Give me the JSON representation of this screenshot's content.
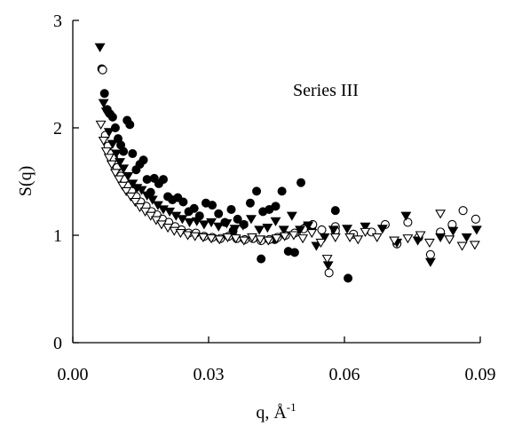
{
  "chart_data": {
    "type": "scatter",
    "title": "",
    "annotation": "Series III",
    "xlabel": "q, Å",
    "xlabel_sup": "-1",
    "ylabel": "S(q)",
    "xlim": [
      0.0,
      0.09
    ],
    "ylim": [
      0,
      3
    ],
    "x_ticks": [
      "0.00",
      "0.03",
      "0.06",
      "0.09"
    ],
    "y_ticks": [
      "0",
      "1",
      "2",
      "3"
    ],
    "grid": false,
    "series": [
      {
        "marker": "filled-circle",
        "color": "#000000",
        "points": [
          [
            0.0064,
            2.55
          ],
          [
            0.007,
            2.32
          ],
          [
            0.0076,
            2.17
          ],
          [
            0.0082,
            2.13
          ],
          [
            0.0088,
            2.1
          ],
          [
            0.0094,
            2.0
          ],
          [
            0.01,
            1.9
          ],
          [
            0.0106,
            1.84
          ],
          [
            0.0112,
            1.78
          ],
          [
            0.012,
            2.07
          ],
          [
            0.0126,
            2.03
          ],
          [
            0.0132,
            1.76
          ],
          [
            0.014,
            1.61
          ],
          [
            0.0148,
            1.66
          ],
          [
            0.0156,
            1.7
          ],
          [
            0.0164,
            1.52
          ],
          [
            0.0172,
            1.4
          ],
          [
            0.018,
            1.53
          ],
          [
            0.019,
            1.48
          ],
          [
            0.02,
            1.52
          ],
          [
            0.021,
            1.36
          ],
          [
            0.022,
            1.33
          ],
          [
            0.0232,
            1.35
          ],
          [
            0.0244,
            1.31
          ],
          [
            0.0256,
            1.22
          ],
          [
            0.0268,
            1.25
          ],
          [
            0.028,
            1.18
          ],
          [
            0.0294,
            1.3
          ],
          [
            0.0308,
            1.28
          ],
          [
            0.0322,
            1.2
          ],
          [
            0.0336,
            1.12
          ],
          [
            0.035,
            1.24
          ],
          [
            0.0364,
            1.15
          ],
          [
            0.0378,
            1.1
          ],
          [
            0.0392,
            1.3
          ],
          [
            0.0406,
            1.41
          ],
          [
            0.042,
            1.22
          ],
          [
            0.0434,
            1.24
          ],
          [
            0.0448,
            1.27
          ],
          [
            0.0462,
            1.41
          ],
          [
            0.0476,
            0.85
          ],
          [
            0.049,
            0.84
          ],
          [
            0.0504,
            1.49
          ],
          [
            0.0516,
            1.08
          ],
          [
            0.0528,
            1.07
          ],
          [
            0.0416,
            0.78
          ],
          [
            0.0446,
            0.96
          ],
          [
            0.058,
            1.23
          ],
          [
            0.0608,
            0.6
          ],
          [
            0.0354,
            1.04
          ]
        ]
      },
      {
        "marker": "open-circle",
        "color": "#000000",
        "points": [
          [
            0.0066,
            2.54
          ],
          [
            0.0072,
            1.93
          ],
          [
            0.0078,
            1.83
          ],
          [
            0.0084,
            1.76
          ],
          [
            0.009,
            1.72
          ],
          [
            0.0098,
            1.63
          ],
          [
            0.0106,
            1.55
          ],
          [
            0.0114,
            1.52
          ],
          [
            0.0122,
            1.46
          ],
          [
            0.013,
            1.41
          ],
          [
            0.014,
            1.36
          ],
          [
            0.015,
            1.31
          ],
          [
            0.0162,
            1.27
          ],
          [
            0.0174,
            1.22
          ],
          [
            0.0186,
            1.19
          ],
          [
            0.0198,
            1.15
          ],
          [
            0.0212,
            1.12
          ],
          [
            0.0226,
            1.08
          ],
          [
            0.024,
            1.05
          ],
          [
            0.0256,
            1.02
          ],
          [
            0.0272,
            1.02
          ],
          [
            0.029,
            0.99
          ],
          [
            0.0308,
            0.98
          ],
          [
            0.0326,
            0.97
          ],
          [
            0.0344,
            0.99
          ],
          [
            0.0362,
            0.97
          ],
          [
            0.038,
            0.96
          ],
          [
            0.0398,
            0.97
          ],
          [
            0.0416,
            0.95
          ],
          [
            0.0434,
            0.96
          ],
          [
            0.0452,
            0.98
          ],
          [
            0.047,
            1.0
          ],
          [
            0.049,
            1.02
          ],
          [
            0.051,
            1.06
          ],
          [
            0.053,
            1.1
          ],
          [
            0.055,
            1.05
          ],
          [
            0.0566,
            0.65
          ],
          [
            0.058,
            1.08
          ],
          [
            0.062,
            1.01
          ],
          [
            0.066,
            1.03
          ],
          [
            0.069,
            1.1
          ],
          [
            0.0716,
            0.92
          ],
          [
            0.074,
            1.12
          ],
          [
            0.0764,
            0.98
          ],
          [
            0.079,
            0.82
          ],
          [
            0.0812,
            1.03
          ],
          [
            0.0838,
            1.1
          ],
          [
            0.0862,
            1.23
          ],
          [
            0.089,
            1.15
          ],
          [
            0.058,
            1.04
          ]
        ]
      },
      {
        "marker": "filled-triangle-down",
        "color": "#000000",
        "points": [
          [
            0.006,
            2.75
          ],
          [
            0.0068,
            2.23
          ],
          [
            0.0074,
            2.15
          ],
          [
            0.008,
            1.96
          ],
          [
            0.0088,
            1.85
          ],
          [
            0.0096,
            1.76
          ],
          [
            0.0104,
            1.68
          ],
          [
            0.0112,
            1.62
          ],
          [
            0.0122,
            1.55
          ],
          [
            0.0132,
            1.48
          ],
          [
            0.0142,
            1.44
          ],
          [
            0.0152,
            1.42
          ],
          [
            0.0164,
            1.37
          ],
          [
            0.0176,
            1.33
          ],
          [
            0.0188,
            1.28
          ],
          [
            0.02,
            1.24
          ],
          [
            0.0214,
            1.22
          ],
          [
            0.0228,
            1.18
          ],
          [
            0.0242,
            1.15
          ],
          [
            0.0258,
            1.12
          ],
          [
            0.0274,
            1.13
          ],
          [
            0.029,
            1.1
          ],
          [
            0.0306,
            1.12
          ],
          [
            0.0322,
            1.08
          ],
          [
            0.034,
            1.11
          ],
          [
            0.0358,
            1.06
          ],
          [
            0.0376,
            1.09
          ],
          [
            0.0394,
            1.15
          ],
          [
            0.0412,
            1.05
          ],
          [
            0.043,
            1.07
          ],
          [
            0.0448,
            1.13
          ],
          [
            0.0466,
            1.05
          ],
          [
            0.0484,
            1.18
          ],
          [
            0.0502,
            1.05
          ],
          [
            0.052,
            1.09
          ],
          [
            0.0538,
            0.9
          ],
          [
            0.0556,
            0.98
          ],
          [
            0.0564,
            0.72
          ],
          [
            0.0576,
            1.05
          ],
          [
            0.0606,
            1.06
          ],
          [
            0.0646,
            1.08
          ],
          [
            0.0684,
            1.06
          ],
          [
            0.0716,
            0.93
          ],
          [
            0.0736,
            1.18
          ],
          [
            0.0762,
            0.95
          ],
          [
            0.079,
            0.75
          ],
          [
            0.0812,
            0.98
          ],
          [
            0.084,
            1.04
          ],
          [
            0.087,
            0.98
          ],
          [
            0.0892,
            1.05
          ]
        ]
      },
      {
        "marker": "open-triangle-down",
        "color": "#000000",
        "points": [
          [
            0.0062,
            2.03
          ],
          [
            0.0068,
            1.88
          ],
          [
            0.0074,
            1.78
          ],
          [
            0.008,
            1.72
          ],
          [
            0.0086,
            1.66
          ],
          [
            0.0094,
            1.58
          ],
          [
            0.0102,
            1.52
          ],
          [
            0.011,
            1.46
          ],
          [
            0.0118,
            1.41
          ],
          [
            0.0128,
            1.36
          ],
          [
            0.0138,
            1.31
          ],
          [
            0.0148,
            1.26
          ],
          [
            0.016,
            1.22
          ],
          [
            0.0172,
            1.18
          ],
          [
            0.0184,
            1.14
          ],
          [
            0.0196,
            1.1
          ],
          [
            0.021,
            1.07
          ],
          [
            0.0224,
            1.04
          ],
          [
            0.0238,
            1.02
          ],
          [
            0.0254,
            1.0
          ],
          [
            0.027,
            0.99
          ],
          [
            0.0288,
            0.98
          ],
          [
            0.0306,
            0.97
          ],
          [
            0.0324,
            0.96
          ],
          [
            0.0342,
            0.98
          ],
          [
            0.036,
            0.97
          ],
          [
            0.0378,
            0.95
          ],
          [
            0.0396,
            0.98
          ],
          [
            0.0414,
            0.96
          ],
          [
            0.0432,
            0.95
          ],
          [
            0.045,
            0.97
          ],
          [
            0.0468,
            0.99
          ],
          [
            0.0488,
            1.0
          ],
          [
            0.0508,
            0.97
          ],
          [
            0.0528,
            1.02
          ],
          [
            0.0548,
            0.93
          ],
          [
            0.0562,
            0.78
          ],
          [
            0.058,
            0.98
          ],
          [
            0.063,
            0.96
          ],
          [
            0.0672,
            0.98
          ],
          [
            0.071,
            0.95
          ],
          [
            0.074,
            0.97
          ],
          [
            0.0768,
            1.0
          ],
          [
            0.0788,
            0.93
          ],
          [
            0.0812,
            1.2
          ],
          [
            0.0832,
            0.96
          ],
          [
            0.086,
            0.9
          ],
          [
            0.0888,
            0.91
          ],
          [
            0.0612,
            0.98
          ],
          [
            0.0646,
            1.03
          ]
        ]
      }
    ]
  }
}
